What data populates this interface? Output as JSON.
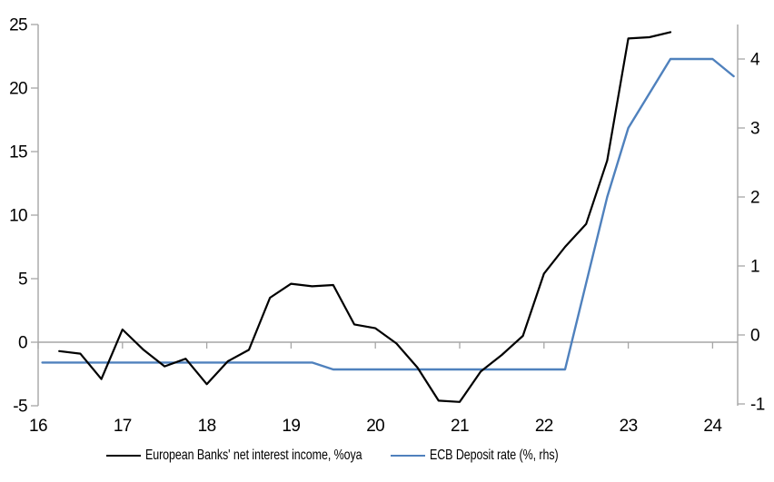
{
  "chart_data": {
    "type": "line",
    "title": "",
    "legend_position": "bottom",
    "grid": "zero-line-only",
    "x_axis": {
      "tick_values": [
        16,
        17,
        18,
        19,
        20,
        21,
        22,
        23,
        24
      ],
      "tick_labels": [
        "16",
        "17",
        "18",
        "19",
        "20",
        "21",
        "22",
        "23",
        "24"
      ],
      "range": [
        16,
        24.3
      ]
    },
    "left_axis": {
      "tick_values": [
        25,
        20,
        15,
        10,
        5,
        0,
        -5
      ],
      "range": [
        -5,
        25.8
      ],
      "applies_to": "European Banks' net interest income, %oya"
    },
    "right_axis": {
      "tick_values": [
        4,
        3,
        2,
        1,
        0,
        -1
      ],
      "range": [
        -1.2,
        4.5
      ],
      "applies_to": "ECB Deposit rate (%, rhs)"
    },
    "series": [
      {
        "name": "European Banks' net interest income, %oya",
        "color": "#000000",
        "axis": "left",
        "stroke_width": 2.2,
        "x": [
          16.25,
          16.5,
          16.75,
          17.0,
          17.25,
          17.5,
          17.75,
          18.0,
          18.25,
          18.5,
          18.75,
          19.0,
          19.25,
          19.5,
          19.75,
          20.0,
          20.25,
          20.5,
          20.75,
          21.0,
          21.25,
          21.5,
          21.75,
          22.0,
          22.25,
          22.5,
          22.75,
          23.0,
          23.25,
          23.5
        ],
        "values": [
          -0.7,
          -0.9,
          -2.9,
          1.0,
          -0.6,
          -1.9,
          -1.3,
          -3.3,
          -1.5,
          -0.6,
          3.5,
          4.6,
          4.4,
          4.5,
          1.4,
          1.1,
          -0.1,
          -2.0,
          -4.6,
          -4.7,
          -2.3,
          -1.0,
          0.5,
          5.4,
          7.5,
          9.3,
          14.3,
          23.9,
          24.0,
          24.4
        ]
      },
      {
        "name": "ECB Deposit rate (%, rhs)",
        "color": "#4f81bd",
        "axis": "right",
        "stroke_width": 2.4,
        "x": [
          16.05,
          19.25,
          19.5,
          22.25,
          22.5,
          22.75,
          23.0,
          23.25,
          23.5,
          23.75,
          24.0,
          24.25
        ],
        "values": [
          -0.4,
          -0.4,
          -0.5,
          -0.5,
          0.75,
          2.0,
          3.0,
          3.5,
          4.0,
          4.0,
          4.0,
          3.75
        ]
      }
    ]
  },
  "colors": {
    "background": "#ffffff",
    "axis": "#a6a6a6",
    "text": "#000000",
    "nii_line": "#000000",
    "ecb_line": "#4f81bd"
  }
}
